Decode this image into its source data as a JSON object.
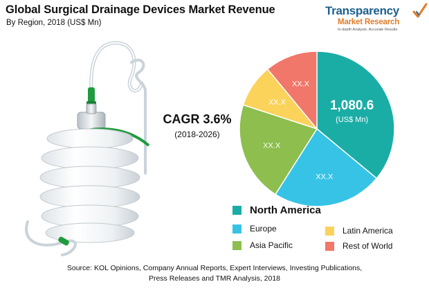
{
  "header": {
    "title": "Global Surgical Drainage Devices Market Revenue",
    "subtitle": "By Region, 2018 (US$ Mn)"
  },
  "logo": {
    "line1": "Transparency",
    "line2": "Market Research",
    "tagline": "In-depth Analysis. Accurate Results"
  },
  "cagr": {
    "value": "CAGR 3.6%",
    "period": "(2018-2026)"
  },
  "chart_data": {
    "type": "pie",
    "title": "Global Surgical Drainage Devices Market Revenue",
    "subtitle": "By Region, 2018 (US$ Mn)",
    "slices": [
      {
        "name": "North America",
        "label": "1,080.6",
        "unit": "(US$ Mn)",
        "share": 0.36,
        "color": "#1aada6"
      },
      {
        "name": "Europe",
        "label": "XX.X",
        "share": 0.23,
        "color": "#37c3e6"
      },
      {
        "name": "Asia Pacific",
        "label": "XX.X",
        "share": 0.21,
        "color": "#8dbe4e"
      },
      {
        "name": "Latin America",
        "label": "XX.X",
        "share": 0.09,
        "color": "#fbd35a"
      },
      {
        "name": "Rest of World",
        "label": "XX.X",
        "share": 0.11,
        "color": "#f0776a"
      }
    ],
    "start_angle_deg": 0,
    "direction": "clockwise"
  },
  "legend": {
    "north_america": "North America",
    "europe": "Europe",
    "latin_america": "Latin America",
    "asia_pacific": "Asia Pacific",
    "rest_of_world": "Rest of World"
  },
  "source": {
    "line1": "Source: KOL Opinions, Company Annual Reports, Expert Interviews, Investing Publications,",
    "line2": "Press Releases and TMR Analysis, 2018"
  }
}
